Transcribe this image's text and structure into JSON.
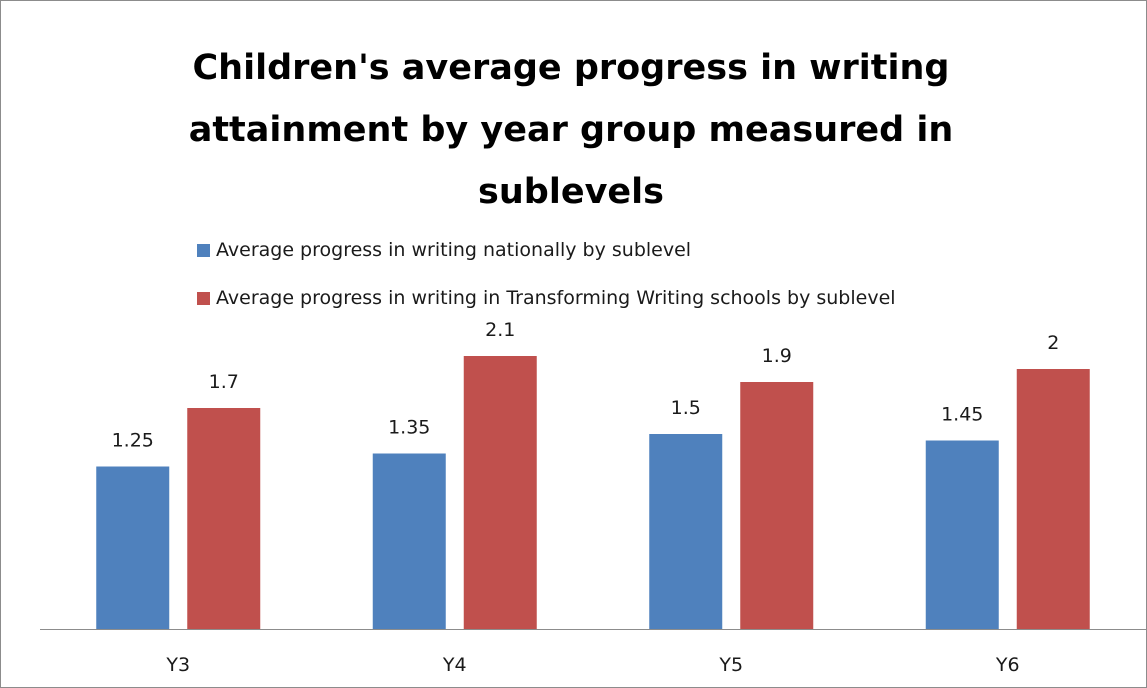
{
  "chart_data": {
    "type": "bar",
    "title": "Children's average progress in writing attainment by year group measured in sublevels",
    "title_lines": [
      "Children's average progress in writing",
      "attainment by year group measured in",
      "sublevels"
    ],
    "categories": [
      "Y3",
      "Y4",
      "Y5",
      "Y6"
    ],
    "series": [
      {
        "name": "Average progress in writing nationally by sublevel",
        "color": "#4F81BD",
        "values": [
          1.25,
          1.35,
          1.5,
          1.45
        ],
        "value_labels": [
          "1.25",
          "1.35",
          "1.5",
          "1.45"
        ]
      },
      {
        "name": "Average progress in writing in Transforming Writing schools by sublevel",
        "color": "#C0504D",
        "values": [
          1.7,
          2.1,
          1.9,
          2
        ],
        "value_labels": [
          "1.7",
          "2.1",
          "1.9",
          "2"
        ]
      }
    ],
    "xlabel": "",
    "ylabel": "",
    "ylim": [
      0,
      2.2
    ],
    "y_axis_visible": false,
    "grid": false,
    "legend_position": "top-left",
    "axis_color": "#8C8C8C"
  }
}
